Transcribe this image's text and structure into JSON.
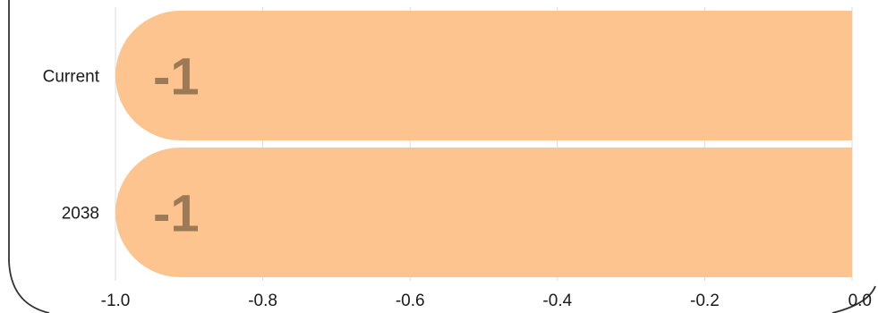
{
  "chart_data": {
    "type": "bar",
    "orientation": "horizontal",
    "categories": [
      "Current",
      "2038"
    ],
    "values": [
      -1,
      -1
    ],
    "data_labels": [
      "-1",
      "-1"
    ],
    "xlim": [
      -1.0,
      0.0
    ],
    "x_ticks": [
      -1.0,
      -0.8,
      -0.6,
      -0.4,
      -0.2,
      0.0
    ],
    "x_tick_labels": [
      "-1.0",
      "-0.8",
      "-0.6",
      "-0.4",
      "-0.2",
      "0.0"
    ],
    "grid": "vertical",
    "title": "",
    "xlabel": "",
    "ylabel": "",
    "colors": {
      "bar": "#fdc48f",
      "data_label": "#9c7a55",
      "gridline": "#dddddd",
      "frame": "#333333"
    }
  }
}
